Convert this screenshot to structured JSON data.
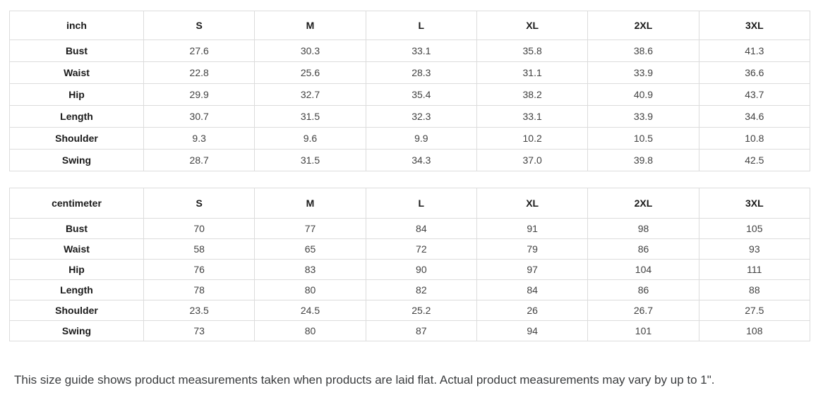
{
  "page": {
    "footer_note": "This size guide shows product measurements taken when products are laid flat. Actual product measurements may vary by up to 1\"."
  },
  "tables": [
    {
      "unit_label": "inch",
      "size_headers": [
        "S",
        "M",
        "L",
        "XL",
        "2XL",
        "3XL"
      ],
      "rows": [
        {
          "label": "Bust",
          "values": [
            "27.6",
            "30.3",
            "33.1",
            "35.8",
            "38.6",
            "41.3"
          ]
        },
        {
          "label": "Waist",
          "values": [
            "22.8",
            "25.6",
            "28.3",
            "31.1",
            "33.9",
            "36.6"
          ]
        },
        {
          "label": "Hip",
          "values": [
            "29.9",
            "32.7",
            "35.4",
            "38.2",
            "40.9",
            "43.7"
          ]
        },
        {
          "label": "Length",
          "values": [
            "30.7",
            "31.5",
            "32.3",
            "33.1",
            "33.9",
            "34.6"
          ]
        },
        {
          "label": "Shoulder",
          "values": [
            "9.3",
            "9.6",
            "9.9",
            "10.2",
            "10.5",
            "10.8"
          ]
        },
        {
          "label": "Swing",
          "values": [
            "28.7",
            "31.5",
            "34.3",
            "37.0",
            "39.8",
            "42.5"
          ]
        }
      ]
    },
    {
      "unit_label": "centimeter",
      "size_headers": [
        "S",
        "M",
        "L",
        "XL",
        "2XL",
        "3XL"
      ],
      "rows": [
        {
          "label": "Bust",
          "values": [
            "70",
            "77",
            "84",
            "91",
            "98",
            "105"
          ]
        },
        {
          "label": "Waist",
          "values": [
            "58",
            "65",
            "72",
            "79",
            "86",
            "93"
          ]
        },
        {
          "label": "Hip",
          "values": [
            "76",
            "83",
            "90",
            "97",
            "104",
            "111"
          ]
        },
        {
          "label": "Length",
          "values": [
            "78",
            "80",
            "82",
            "84",
            "86",
            "88"
          ]
        },
        {
          "label": "Shoulder",
          "values": [
            "23.5",
            "24.5",
            "25.2",
            "26",
            "26.7",
            "27.5"
          ]
        },
        {
          "label": "Swing",
          "values": [
            "73",
            "80",
            "87",
            "94",
            "101",
            "108"
          ]
        }
      ]
    }
  ],
  "colors": {
    "background": "#ffffff",
    "border": "#dcdcdc",
    "header_text": "#1a1a1a",
    "value_text": "#424242",
    "footer_text": "#3a3c3e"
  }
}
